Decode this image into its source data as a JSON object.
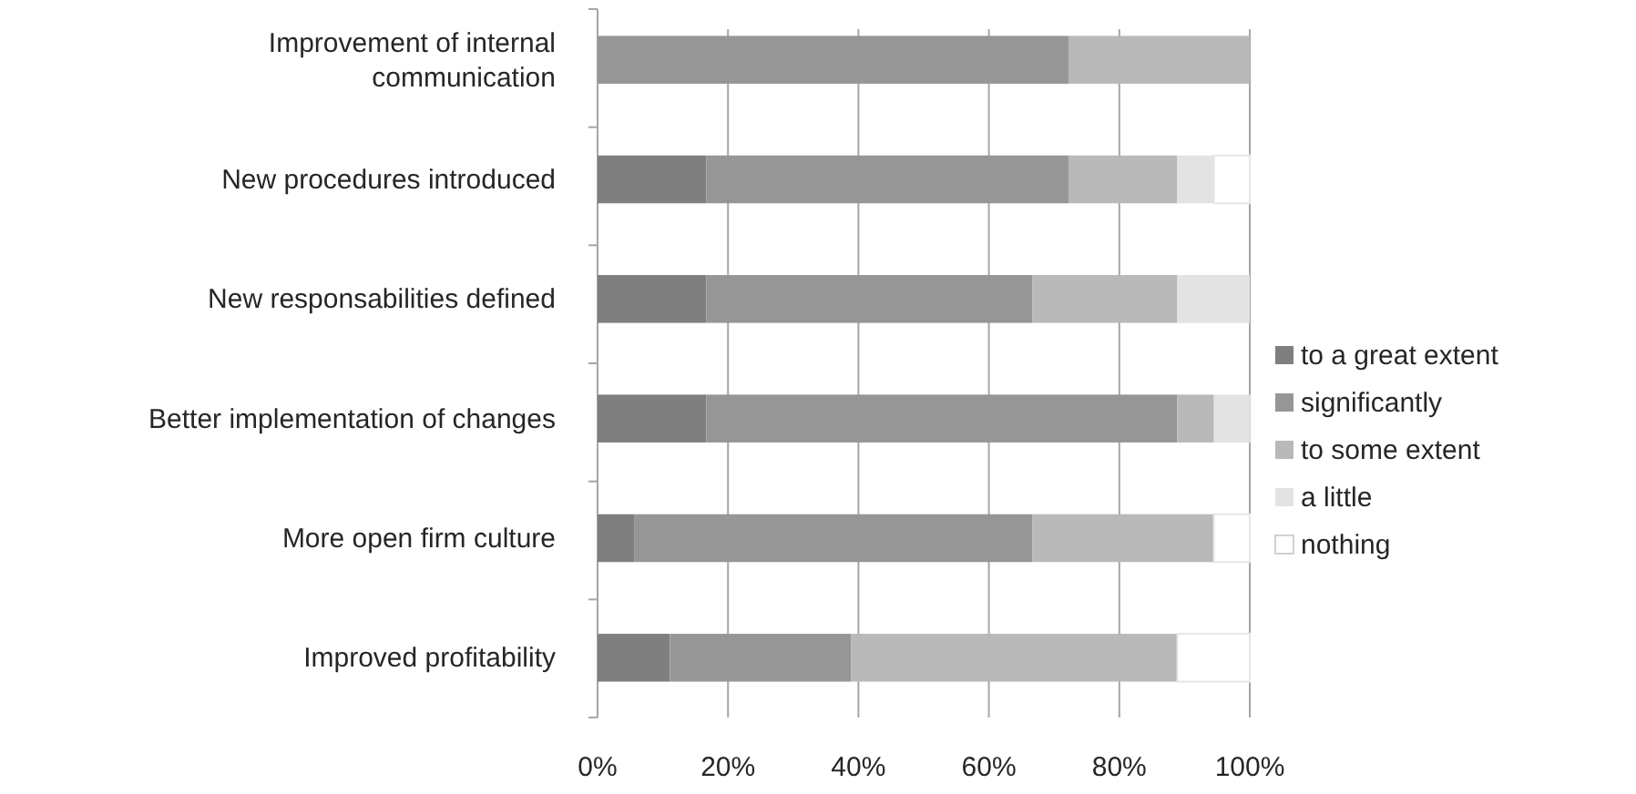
{
  "chart_data": {
    "type": "bar",
    "orientation": "horizontal",
    "stacked": true,
    "categories": [
      "Improvement of internal communication",
      "New procedures introduced",
      "New responsabilities defined",
      "Better implementation of changes",
      "More open firm culture",
      "Improved profitability"
    ],
    "series": [
      {
        "name": "to a great extent",
        "color": "#7f7f7f",
        "values": [
          0,
          16.7,
          16.7,
          16.7,
          5.6,
          11.1
        ]
      },
      {
        "name": "significantly",
        "color": "#969696",
        "values": [
          72.2,
          55.5,
          50,
          72.2,
          61.1,
          27.8
        ]
      },
      {
        "name": "to some extent",
        "color": "#b9b9b9",
        "values": [
          27.8,
          16.7,
          22.2,
          5.6,
          27.8,
          50
        ]
      },
      {
        "name": "a little",
        "color": "#e3e3e3",
        "values": [
          0,
          5.6,
          11.1,
          5.6,
          0,
          0
        ]
      },
      {
        "name": "nothing",
        "color": "#ffffff",
        "values": [
          0,
          5.5,
          0,
          0,
          5.5,
          11.1
        ]
      }
    ],
    "xlim": [
      0,
      100
    ],
    "xticks": [
      {
        "value": 0,
        "label": "0%"
      },
      {
        "value": 20,
        "label": "20%"
      },
      {
        "value": 40,
        "label": "40%"
      },
      {
        "value": 60,
        "label": "60%"
      },
      {
        "value": 80,
        "label": "80%"
      },
      {
        "value": 100,
        "label": "100%"
      }
    ],
    "grid": "x",
    "legend": "right"
  }
}
